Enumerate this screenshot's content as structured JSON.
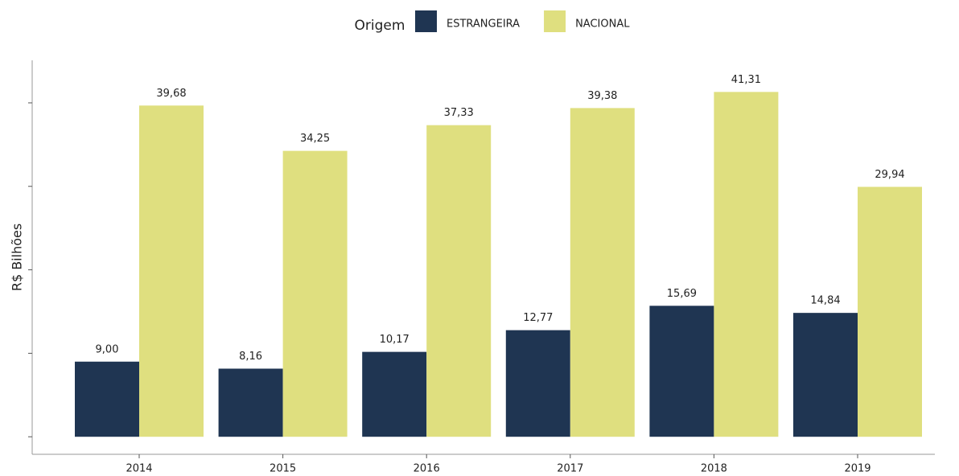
{
  "chart_data": {
    "type": "bar",
    "legend_title": "Origem",
    "y_label": "R$ Bilhões",
    "categories": [
      "2014",
      "2015",
      "2016",
      "2017",
      "2018",
      "2019"
    ],
    "series": [
      {
        "name": "ESTRANGEIRA",
        "color": "#1f3552",
        "values": [
          9.0,
          8.16,
          10.17,
          12.77,
          15.69,
          14.84
        ],
        "value_labels": [
          "9,00",
          "8,16",
          "10,17",
          "12,77",
          "15,69",
          "14,84"
        ]
      },
      {
        "name": "NACIONAL",
        "color": "#dfdf7f",
        "values": [
          39.68,
          34.25,
          37.33,
          39.38,
          41.31,
          29.94
        ],
        "value_labels": [
          "39,68",
          "34,25",
          "37,33",
          "39,38",
          "41,31",
          "29,94"
        ]
      }
    ],
    "ylim": [
      -2.1,
      45.1
    ],
    "yticks": [
      0,
      10,
      20,
      30,
      40
    ],
    "ytick_labels": false,
    "legend": "top",
    "grid": false
  }
}
